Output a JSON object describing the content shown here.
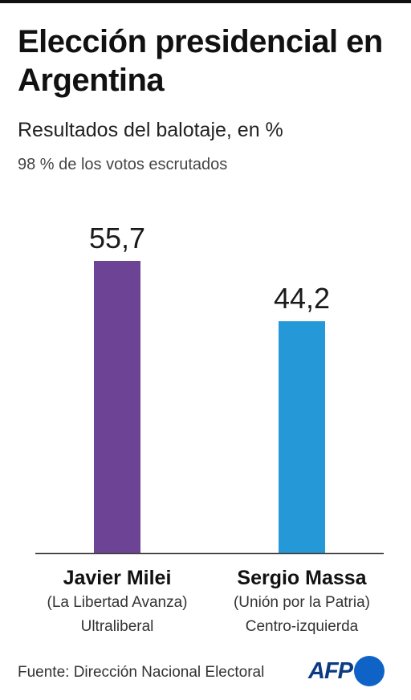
{
  "title": "Elección presidencial en Argentina",
  "subtitle": "Resultados del balotaje, en %",
  "note": "98 %  de los votos escrutados",
  "candidates": [
    {
      "name": "Javier Milei",
      "party": "(La Libertad Avanza)",
      "orientation": "Ultraliberal"
    },
    {
      "name": "Sergio Massa",
      "party": "(Unión por la Patria)",
      "orientation": "Centro-izquierda"
    }
  ],
  "source": "Fuente: Dirección Nacional Electoral",
  "logo": "AFP",
  "colors": {
    "milei": "#6d4495",
    "massa": "#2598d8",
    "baseline": "#444444",
    "logo_text": "#0d3b82",
    "logo_dot": "#0f63c7"
  },
  "chart_data": {
    "type": "bar",
    "categories": [
      "Javier Milei",
      "Sergio Massa"
    ],
    "values": [
      55.7,
      44.2
    ],
    "value_labels": [
      "55,7",
      "44,2"
    ],
    "ylim": [
      0,
      60
    ],
    "grid": false,
    "legend": "none"
  }
}
